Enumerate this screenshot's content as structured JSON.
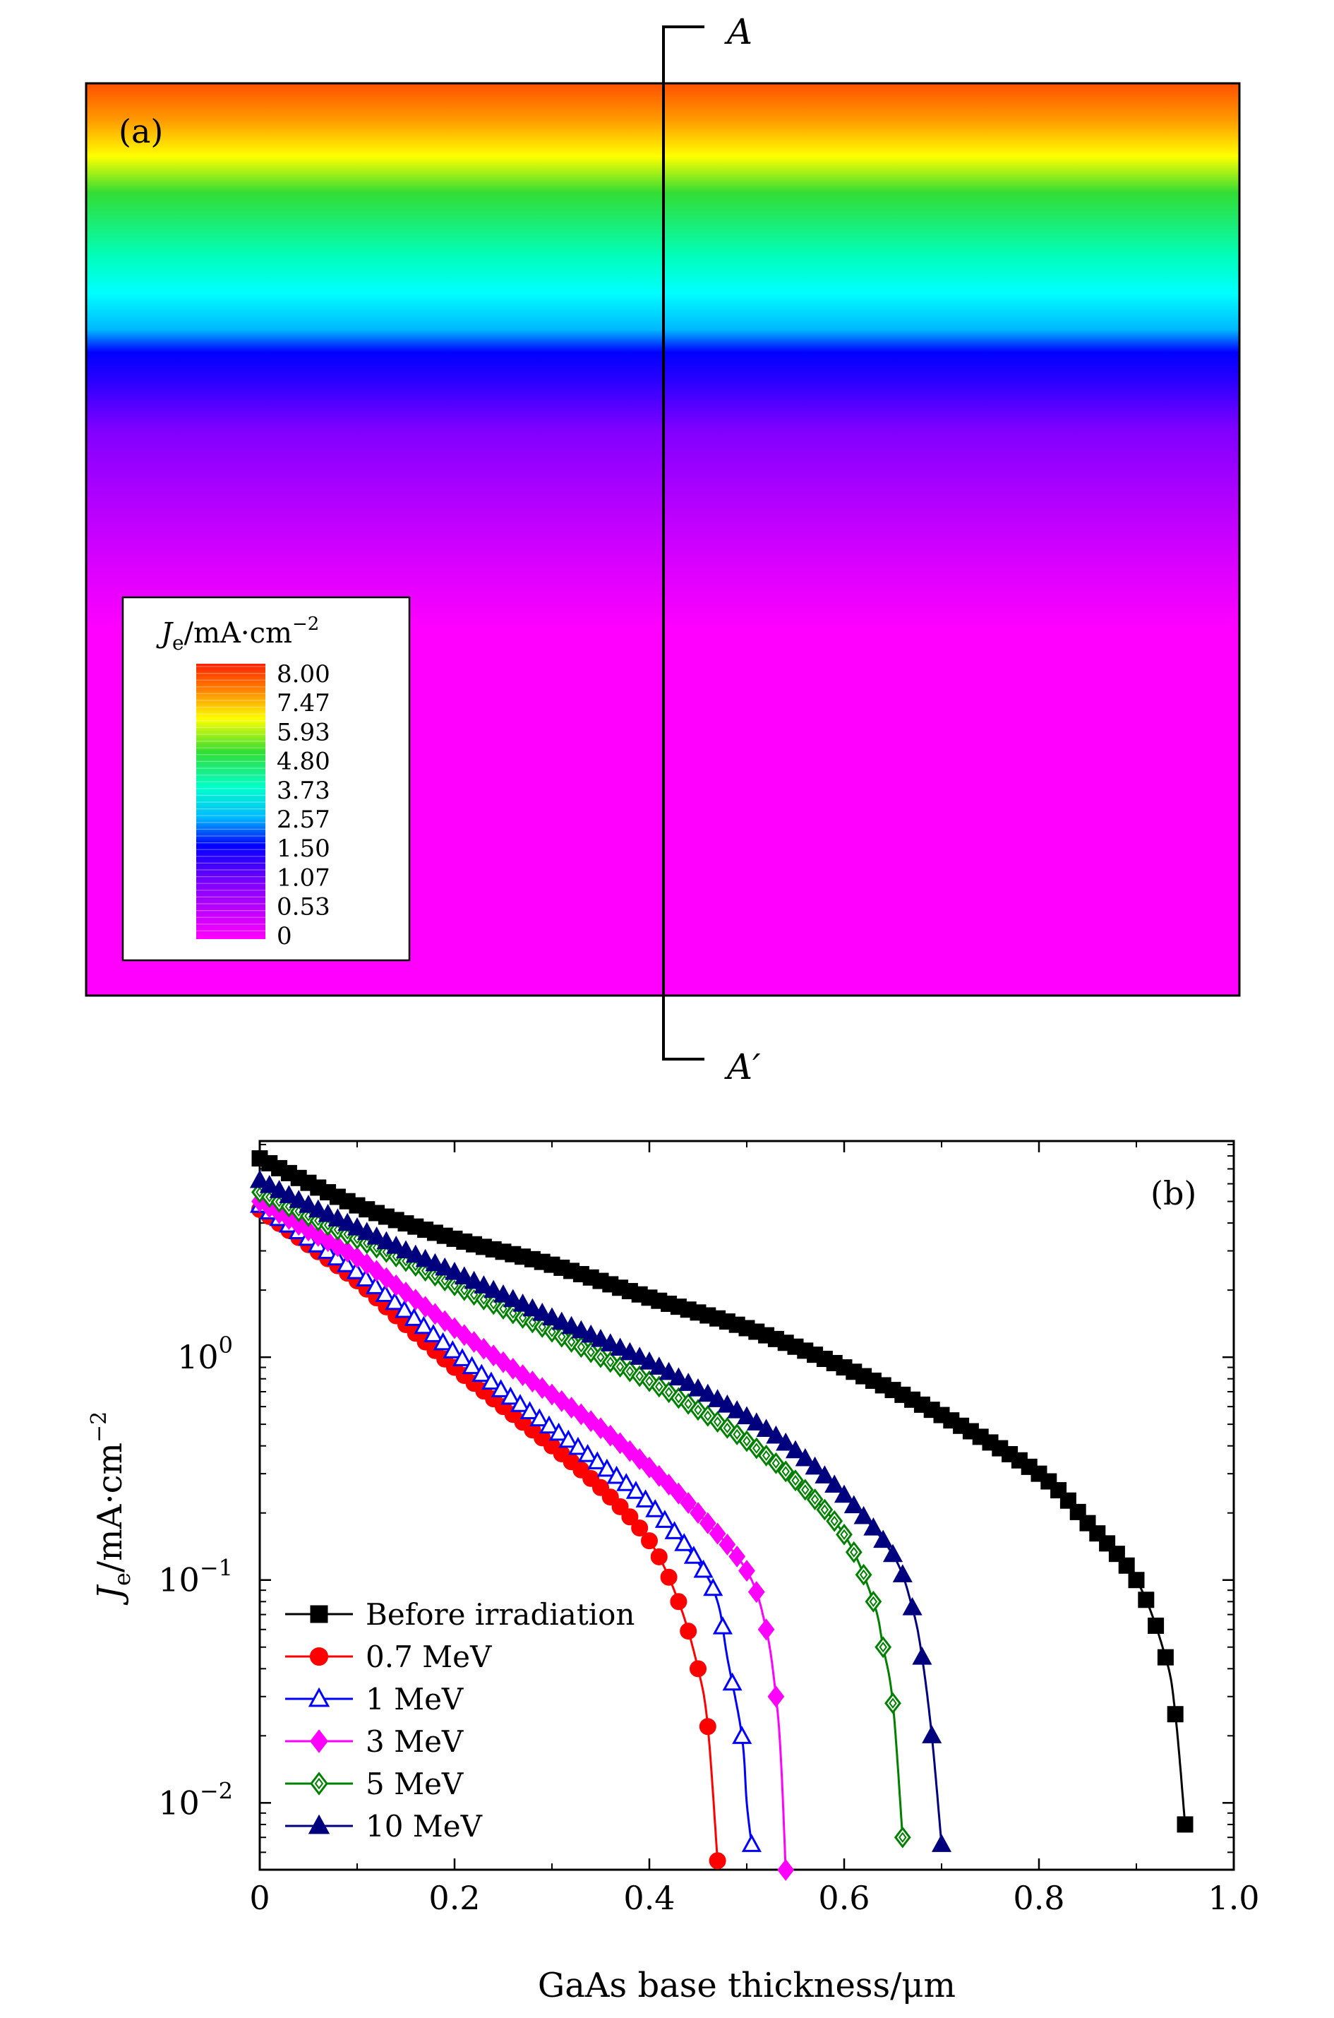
{
  "panel_a": {
    "label": "(a)",
    "marker_top": "A",
    "marker_bottom": "A′",
    "legend": {
      "title_sym": "J",
      "title_sub": "e",
      "title_rest": "/mA·cm",
      "title_sup": "−2",
      "levels": [
        "8.00",
        "7.47",
        "5.93",
        "4.80",
        "3.73",
        "2.57",
        "1.50",
        "1.07",
        "0.53",
        "0"
      ]
    },
    "colors": {
      "top": "#ff5000",
      "orange": "#ff9a00",
      "yellow": "#ffff00",
      "green": "#33dd33",
      "cyan": "#00ffff",
      "sky": "#00b8ff",
      "blue": "#0000ff",
      "violet": "#8000ff",
      "purple": "#c000ff",
      "magenta": "#ff00ff"
    }
  },
  "chart_data": {
    "type": "line",
    "label": "(b)",
    "xlabel": "GaAs base thickness/μm",
    "ylabel": {
      "sym": "J",
      "sub": "e",
      "rest": "/mA·cm",
      "sup": "−2"
    },
    "xlim": [
      0,
      1.0
    ],
    "ylim_log10": [
      -2.3,
      0.97
    ],
    "yscale": "log",
    "xticks": [
      "0",
      "0.2",
      "0.4",
      "0.6",
      "0.8",
      "1.0"
    ],
    "yticks": [
      {
        "base": "10",
        "exp": "0",
        "v": 0
      },
      {
        "base": "10",
        "exp": "−1",
        "v": -1
      },
      {
        "base": "10",
        "exp": "−2",
        "v": -2
      }
    ],
    "legend_position": "bottom-left",
    "series": [
      {
        "name": "Before irradiation",
        "color": "#000000",
        "marker": "square",
        "filled": true,
        "points": [
          [
            0,
            7.8
          ],
          [
            0.1,
            4.8
          ],
          [
            0.2,
            3.4
          ],
          [
            0.3,
            2.6
          ],
          [
            0.4,
            1.85
          ],
          [
            0.5,
            1.35
          ],
          [
            0.6,
            0.9
          ],
          [
            0.7,
            0.55
          ],
          [
            0.8,
            0.3
          ],
          [
            0.85,
            0.18
          ],
          [
            0.9,
            0.1
          ],
          [
            0.93,
            0.045
          ],
          [
            0.94,
            0.025
          ],
          [
            0.95,
            0.008
          ]
        ]
      },
      {
        "name": "0.7 MeV",
        "color": "#ff0000",
        "marker": "circle",
        "filled": true,
        "points": [
          [
            0,
            4.6
          ],
          [
            0.05,
            3.2
          ],
          [
            0.1,
            2.2
          ],
          [
            0.15,
            1.4
          ],
          [
            0.2,
            0.9
          ],
          [
            0.25,
            0.6
          ],
          [
            0.3,
            0.4
          ],
          [
            0.35,
            0.26
          ],
          [
            0.4,
            0.15
          ],
          [
            0.43,
            0.08
          ],
          [
            0.45,
            0.04
          ],
          [
            0.46,
            0.022
          ],
          [
            0.47,
            0.0055
          ]
        ]
      },
      {
        "name": "1 MeV",
        "color": "#0000ff",
        "marker": "triangle",
        "filled": false,
        "points": [
          [
            0,
            4.8
          ],
          [
            0.05,
            3.4
          ],
          [
            0.1,
            2.4
          ],
          [
            0.15,
            1.6
          ],
          [
            0.2,
            1.05
          ],
          [
            0.25,
            0.7
          ],
          [
            0.3,
            0.48
          ],
          [
            0.35,
            0.33
          ],
          [
            0.4,
            0.22
          ],
          [
            0.45,
            0.12
          ],
          [
            0.47,
            0.08
          ],
          [
            0.48,
            0.045
          ],
          [
            0.495,
            0.02
          ],
          [
            0.5,
            0.01
          ],
          [
            0.505,
            0.0065
          ]
        ]
      },
      {
        "name": "3 MeV",
        "color": "#ff00ff",
        "marker": "diamond",
        "filled": true,
        "points": [
          [
            0,
            5.0
          ],
          [
            0.05,
            3.7
          ],
          [
            0.1,
            2.8
          ],
          [
            0.15,
            1.95
          ],
          [
            0.2,
            1.35
          ],
          [
            0.25,
            0.95
          ],
          [
            0.3,
            0.68
          ],
          [
            0.35,
            0.48
          ],
          [
            0.4,
            0.32
          ],
          [
            0.45,
            0.2
          ],
          [
            0.5,
            0.11
          ],
          [
            0.52,
            0.06
          ],
          [
            0.53,
            0.03
          ],
          [
            0.535,
            0.016
          ],
          [
            0.54,
            0.005
          ]
        ]
      },
      {
        "name": "5 MeV",
        "color": "#008000",
        "marker": "diamond",
        "filled": false,
        "points": [
          [
            0,
            5.5
          ],
          [
            0.05,
            4.3
          ],
          [
            0.1,
            3.4
          ],
          [
            0.15,
            2.7
          ],
          [
            0.2,
            2.1
          ],
          [
            0.25,
            1.65
          ],
          [
            0.3,
            1.3
          ],
          [
            0.35,
            1.0
          ],
          [
            0.4,
            0.78
          ],
          [
            0.45,
            0.58
          ],
          [
            0.5,
            0.42
          ],
          [
            0.55,
            0.28
          ],
          [
            0.6,
            0.16
          ],
          [
            0.63,
            0.08
          ],
          [
            0.64,
            0.05
          ],
          [
            0.65,
            0.028
          ],
          [
            0.66,
            0.007
          ]
        ]
      },
      {
        "name": "10 MeV",
        "color": "#00007f",
        "marker": "triangle",
        "filled": true,
        "points": [
          [
            0,
            6.2
          ],
          [
            0.05,
            4.8
          ],
          [
            0.1,
            3.8
          ],
          [
            0.15,
            3.0
          ],
          [
            0.2,
            2.4
          ],
          [
            0.25,
            1.9
          ],
          [
            0.3,
            1.5
          ],
          [
            0.35,
            1.2
          ],
          [
            0.4,
            0.95
          ],
          [
            0.45,
            0.72
          ],
          [
            0.5,
            0.54
          ],
          [
            0.55,
            0.38
          ],
          [
            0.6,
            0.24
          ],
          [
            0.65,
            0.13
          ],
          [
            0.67,
            0.075
          ],
          [
            0.68,
            0.045
          ],
          [
            0.69,
            0.02
          ],
          [
            0.7,
            0.0065
          ]
        ]
      }
    ]
  }
}
